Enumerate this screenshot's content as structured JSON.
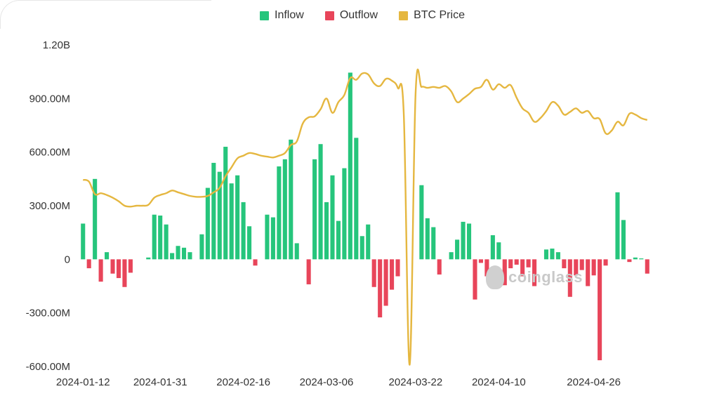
{
  "legend": {
    "inflow": "Inflow",
    "outflow": "Outflow",
    "btc_price": "BTC Price"
  },
  "colors": {
    "inflow": "#26c57c",
    "outflow": "#e8455a",
    "btc_price": "#e5b740",
    "axis_text": "#333333",
    "gridline": "#eeeeee"
  },
  "watermark": "coinglass",
  "chart_data": {
    "type": "bar",
    "title": "",
    "xlabel": "",
    "ylabel": "",
    "ylim": [
      -600000000,
      1200000000
    ],
    "y_ticks": [
      -600000000,
      -300000000,
      0,
      300000000,
      600000000,
      900000000,
      1200000000
    ],
    "y_tick_labels": [
      "-600.00M",
      "-300.00M",
      "0",
      "300.00M",
      "600.00M",
      "900.00M",
      "1.20B"
    ],
    "x_tick_labels": [
      "2024-01-12",
      "2024-01-31",
      "2024-02-16",
      "2024-03-06",
      "2024-03-22",
      "2024-04-10",
      "2024-04-26"
    ],
    "x_tick_indices": [
      0,
      13,
      27,
      41,
      56,
      70,
      86
    ],
    "grid": false,
    "legend_position": "top",
    "series": [
      {
        "name": "Inflow",
        "values": [
          200000000,
          0,
          450000000,
          0,
          40000000,
          0,
          0,
          0,
          0,
          0,
          0,
          10000000,
          250000000,
          245000000,
          195000000,
          35000000,
          75000000,
          65000000,
          40000000,
          0,
          140000000,
          400000000,
          540000000,
          490000000,
          630000000,
          425000000,
          470000000,
          320000000,
          185000000,
          0,
          0,
          250000000,
          235000000,
          520000000,
          560000000,
          670000000,
          90000000,
          0,
          0,
          560000000,
          645000000,
          320000000,
          470000000,
          215000000,
          510000000,
          1045000000,
          680000000,
          130000000,
          195000000,
          0,
          0,
          0,
          0,
          0,
          0,
          0,
          0,
          415000000,
          230000000,
          180000000,
          0,
          0,
          40000000,
          110000000,
          210000000,
          200000000,
          0,
          0,
          0,
          135000000,
          95000000,
          0,
          0,
          0,
          0,
          0,
          0,
          0,
          55000000,
          60000000,
          40000000,
          0,
          0,
          0,
          0,
          0,
          0,
          0,
          0,
          0,
          375000000,
          220000000,
          0,
          10000000,
          5000000,
          0
        ]
      },
      {
        "name": "Outflow",
        "values": [
          0,
          -50000000,
          0,
          -125000000,
          0,
          -80000000,
          -105000000,
          -155000000,
          -75000000,
          0,
          0,
          0,
          0,
          0,
          0,
          0,
          0,
          0,
          0,
          0,
          0,
          0,
          0,
          0,
          0,
          0,
          0,
          0,
          0,
          -35000000,
          0,
          0,
          0,
          0,
          0,
          0,
          0,
          0,
          -140000000,
          0,
          0,
          0,
          0,
          0,
          0,
          0,
          0,
          0,
          0,
          -155000000,
          -325000000,
          -260000000,
          -170000000,
          -95000000,
          0,
          0,
          0,
          0,
          0,
          0,
          -85000000,
          0,
          0,
          0,
          0,
          0,
          -225000000,
          -20000000,
          -95000000,
          0,
          0,
          -145000000,
          -50000000,
          -30000000,
          -95000000,
          -45000000,
          -150000000,
          0,
          0,
          0,
          0,
          -50000000,
          -210000000,
          -90000000,
          -60000000,
          -150000000,
          -90000000,
          -565000000,
          -35000000,
          0,
          0,
          0,
          -15000000,
          0,
          0,
          -80000000
        ]
      },
      {
        "name": "BTC Price",
        "type": "line",
        "values": [
          445000000,
          435000000,
          365000000,
          370000000,
          360000000,
          345000000,
          325000000,
          300000000,
          295000000,
          300000000,
          300000000,
          305000000,
          345000000,
          360000000,
          370000000,
          385000000,
          375000000,
          365000000,
          355000000,
          350000000,
          350000000,
          355000000,
          375000000,
          400000000,
          465000000,
          515000000,
          565000000,
          580000000,
          595000000,
          590000000,
          580000000,
          575000000,
          570000000,
          580000000,
          595000000,
          640000000,
          660000000,
          760000000,
          795000000,
          800000000,
          840000000,
          900000000,
          820000000,
          880000000,
          920000000,
          1015000000,
          1005000000,
          1040000000,
          1035000000,
          985000000,
          970000000,
          1010000000,
          1000000000,
          960000000,
          820000000,
          -590000000,
          930000000,
          965000000,
          960000000,
          965000000,
          960000000,
          970000000,
          940000000,
          880000000,
          900000000,
          925000000,
          955000000,
          965000000,
          1005000000,
          950000000,
          980000000,
          960000000,
          975000000,
          905000000,
          845000000,
          820000000,
          770000000,
          790000000,
          830000000,
          880000000,
          860000000,
          810000000,
          825000000,
          845000000,
          820000000,
          830000000,
          790000000,
          785000000,
          705000000,
          720000000,
          770000000,
          750000000,
          815000000,
          810000000,
          790000000,
          780000000
        ]
      }
    ]
  }
}
